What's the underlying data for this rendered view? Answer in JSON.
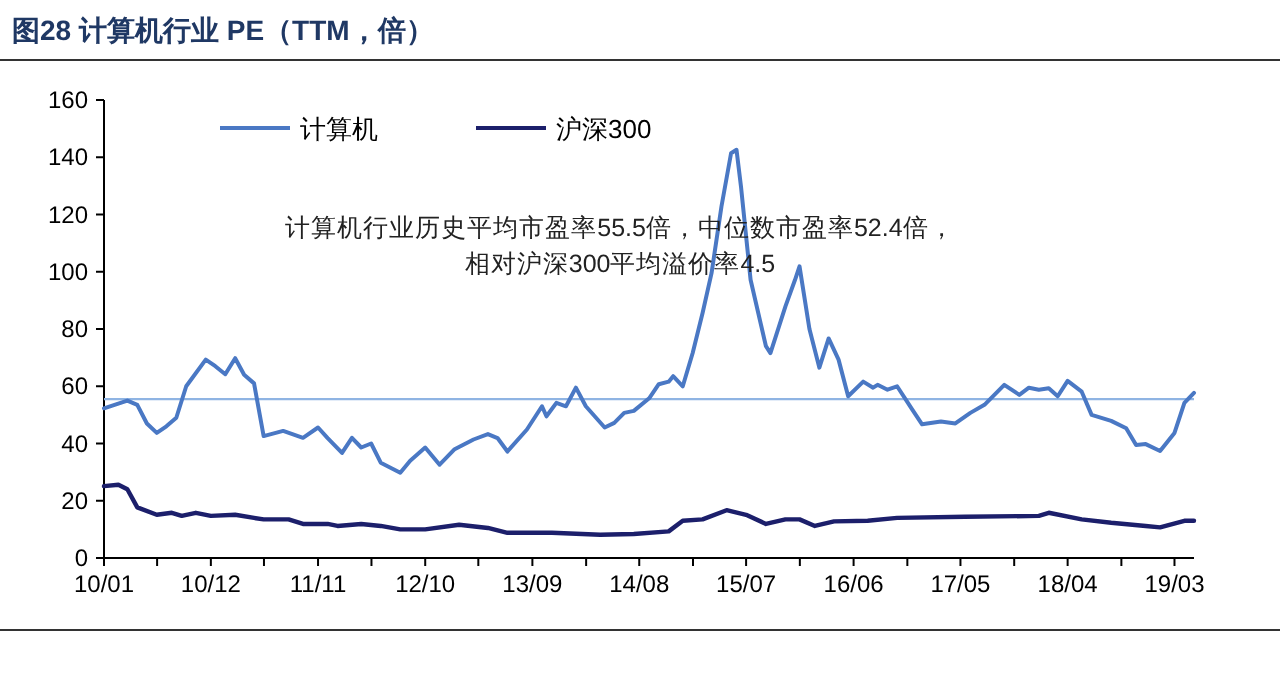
{
  "chart_data": {
    "type": "line",
    "title": "图28 计算机行业 PE（TTM，倍）",
    "annotations": [
      "计算机行业历史平均市盈率55.5倍，中位数市盈率52.4倍，",
      "相对沪深300平均溢价率4.5"
    ],
    "legend": "top",
    "grid": false,
    "marker": "none",
    "line_style": "solid",
    "xlim": [
      "2010-01-01",
      "2019-05-01"
    ],
    "xticks": [
      {
        "value": "2010-01-01",
        "label": "10/01"
      },
      {
        "value": "2010-06-16",
        "label": null
      },
      {
        "value": "2010-12-01",
        "label": "10/12"
      },
      {
        "value": "2011-05-16",
        "label": null
      },
      {
        "value": "2011-11-01",
        "label": "11/11"
      },
      {
        "value": "2012-04-16",
        "label": null
      },
      {
        "value": "2012-10-01",
        "label": "12/10"
      },
      {
        "value": "2013-03-16",
        "label": null
      },
      {
        "value": "2013-09-01",
        "label": "13/09"
      },
      {
        "value": "2014-02-16",
        "label": null
      },
      {
        "value": "2014-08-01",
        "label": "14/08"
      },
      {
        "value": "2015-01-16",
        "label": null
      },
      {
        "value": "2015-07-01",
        "label": "15/07"
      },
      {
        "value": "2015-12-16",
        "label": null
      },
      {
        "value": "2016-06-01",
        "label": "16/06"
      },
      {
        "value": "2016-11-16",
        "label": null
      },
      {
        "value": "2017-05-01",
        "label": "17/05"
      },
      {
        "value": "2017-10-16",
        "label": null
      },
      {
        "value": "2018-04-01",
        "label": "18/04"
      },
      {
        "value": "2018-09-16",
        "label": null
      },
      {
        "value": "2019-03-01",
        "label": "19/03"
      }
    ],
    "ylim": [
      0,
      160
    ],
    "yticks": [
      0,
      20,
      40,
      60,
      80,
      100,
      120,
      140,
      160
    ],
    "ref_lines": [
      {
        "axis": "y",
        "value": 55.5,
        "color": "#8fb4e3"
      }
    ],
    "series": [
      {
        "name": "计算机",
        "color": "#4a78c4",
        "x": [
          "2010-01-01",
          "2010-03-15",
          "2010-04-15",
          "2010-05-15",
          "2010-06-15",
          "2010-07-15",
          "2010-08-15",
          "2010-09-15",
          "2010-11-15",
          "2010-12-15",
          "2011-01-15",
          "2011-02-15",
          "2011-03-15",
          "2011-04-15",
          "2011-05-15",
          "2011-07-15",
          "2011-09-15",
          "2011-11-01",
          "2011-12-01",
          "2012-01-15",
          "2012-02-15",
          "2012-03-15",
          "2012-04-15",
          "2012-05-15",
          "2012-07-15",
          "2012-08-15",
          "2012-10-01",
          "2012-11-15",
          "2013-01-01",
          "2013-03-01",
          "2013-04-15",
          "2013-05-15",
          "2013-06-15",
          "2013-08-15",
          "2013-10-01",
          "2013-10-15",
          "2013-11-15",
          "2013-12-15",
          "2014-01-15",
          "2014-02-15",
          "2014-04-15",
          "2014-05-15",
          "2014-06-15",
          "2014-07-15",
          "2014-09-01",
          "2014-10-01",
          "2014-11-01",
          "2014-11-15",
          "2014-12-15",
          "2015-01-15",
          "2015-02-15",
          "2015-03-15",
          "2015-04-15",
          "2015-05-15",
          "2015-06-01",
          "2015-06-15",
          "2015-07-15",
          "2015-09-01",
          "2015-09-15",
          "2015-11-01",
          "2015-12-01",
          "2015-12-15",
          "2016-01-15",
          "2016-02-15",
          "2016-03-15",
          "2016-04-15",
          "2016-05-15",
          "2016-07-01",
          "2016-08-01",
          "2016-08-15",
          "2016-09-15",
          "2016-10-15",
          "2016-12-01",
          "2017-01-01",
          "2017-03-01",
          "2017-04-15",
          "2017-06-01",
          "2017-07-15",
          "2017-09-15",
          "2017-11-01",
          "2017-12-01",
          "2018-01-01",
          "2018-02-01",
          "2018-03-01",
          "2018-04-01",
          "2018-05-15",
          "2018-06-15",
          "2018-08-15",
          "2018-10-01",
          "2018-11-01",
          "2018-12-01",
          "2019-01-15",
          "2019-03-01",
          "2019-04-01",
          "2019-05-01"
        ],
        "values": [
          52.3,
          55,
          53.5,
          47,
          43.7,
          46,
          49,
          60,
          69.3,
          67,
          64.2,
          69.8,
          64,
          61,
          42.6,
          44.4,
          42,
          45.6,
          41.9,
          36.7,
          42,
          38.6,
          40,
          33.3,
          29.8,
          34,
          38.6,
          32.6,
          38,
          41.4,
          43.3,
          41.9,
          37.2,
          44.9,
          53,
          49.5,
          54.2,
          53,
          59.5,
          53,
          45.6,
          47.2,
          50.7,
          51.4,
          55.8,
          60.7,
          61.6,
          63.5,
          60,
          71.6,
          85.6,
          99.5,
          122.8,
          141.4,
          142.6,
          129.8,
          97.2,
          74,
          71.6,
          87.9,
          97.2,
          101.9,
          80,
          66.5,
          76.7,
          69.3,
          56.5,
          61.6,
          59.5,
          60.5,
          58.8,
          60,
          51.9,
          46.7,
          47.7,
          47,
          50.7,
          53.5,
          60.5,
          57,
          59.5,
          58.8,
          59.3,
          56.5,
          61.9,
          58.1,
          50,
          47.9,
          45.3,
          39.5,
          39.8,
          37.4,
          43.7,
          54.2,
          57.7
        ]
      },
      {
        "name": "沪深300",
        "color": "#1c1f6b",
        "x": [
          "2010-01-01",
          "2010-02-15",
          "2010-03-15",
          "2010-04-15",
          "2010-06-15",
          "2010-08-01",
          "2010-09-01",
          "2010-10-15",
          "2010-12-01",
          "2011-02-15",
          "2011-04-15",
          "2011-05-15",
          "2011-08-01",
          "2011-09-15",
          "2011-12-01",
          "2012-01-01",
          "2012-03-15",
          "2012-05-15",
          "2012-07-15",
          "2012-10-01",
          "2013-01-15",
          "2013-04-15",
          "2013-06-15",
          "2013-11-01",
          "2014-04-01",
          "2014-07-15",
          "2014-11-01",
          "2014-12-15",
          "2015-02-15",
          "2015-05-01",
          "2015-07-01",
          "2015-09-01",
          "2015-11-01",
          "2015-12-15",
          "2016-02-01",
          "2016-04-01",
          "2016-07-15",
          "2016-10-15",
          "2017-05-15",
          "2018-01-01",
          "2018-02-01",
          "2018-05-15",
          "2018-08-15",
          "2018-12-01",
          "2019-01-15",
          "2019-04-01",
          "2019-05-01"
        ],
        "values": [
          25.1,
          25.6,
          24,
          17.7,
          15.1,
          15.8,
          14.7,
          15.8,
          14.7,
          15.1,
          14,
          13.5,
          13.5,
          11.9,
          11.9,
          11.2,
          11.9,
          11.2,
          10,
          10,
          11.6,
          10.5,
          8.8,
          8.8,
          8.1,
          8.4,
          9.3,
          13,
          13.5,
          16.7,
          15.1,
          11.9,
          13.5,
          13.5,
          11.2,
          12.8,
          13,
          14,
          14.4,
          14.7,
          15.8,
          13.5,
          12.3,
          11.2,
          10.7,
          13,
          13
        ]
      }
    ]
  }
}
